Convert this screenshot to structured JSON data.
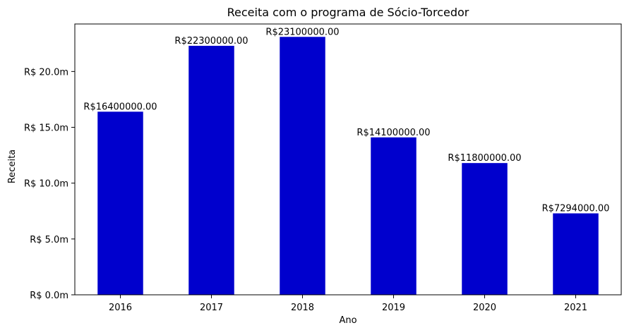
{
  "chart_data": {
    "type": "bar",
    "title": "Receita com o programa de Sócio-Torcedor",
    "xlabel": "Ano",
    "ylabel": "Receita",
    "categories": [
      "2016",
      "2017",
      "2018",
      "2019",
      "2020",
      "2021"
    ],
    "values": [
      16400000,
      22300000,
      23100000,
      14100000,
      11800000,
      7294000
    ],
    "data_labels": [
      "R$16400000.00",
      "R$22300000.00",
      "R$23100000.00",
      "R$14100000.00",
      "R$11800000.00",
      "R$7294000.00"
    ],
    "ylim": [
      0,
      24255000
    ],
    "yticks": [
      0,
      5000000,
      10000000,
      15000000,
      20000000
    ],
    "ytick_labels": [
      "R$ 0.0m",
      "R$ 5.0m",
      "R$ 10.0m",
      "R$ 15.0m",
      "R$ 20.0m"
    ],
    "grid": false,
    "legend": "none",
    "bar_color": "#0000cd"
  }
}
